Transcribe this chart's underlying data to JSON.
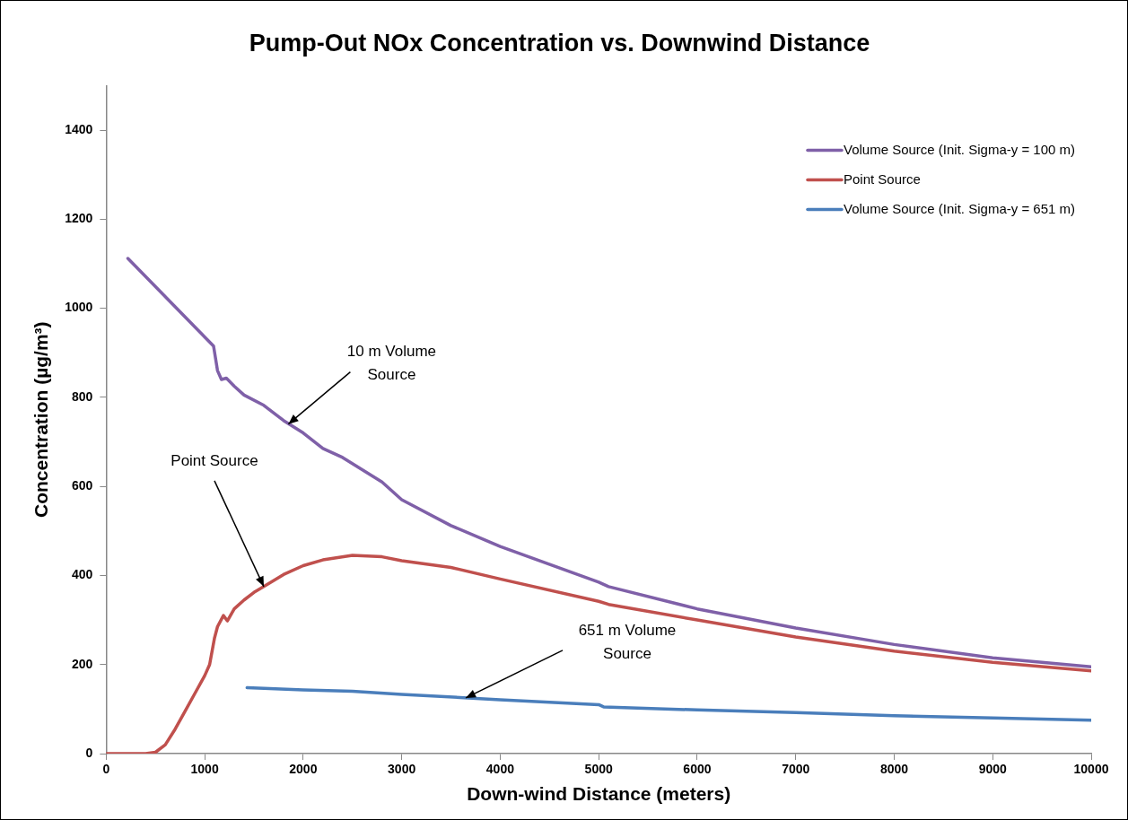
{
  "chart_data": {
    "type": "line",
    "title": "Pump-Out NOx Concentration vs. Downwind Distance",
    "xlabel": "Down-wind Distance (meters)",
    "ylabel": "Concentration (µg/m³)",
    "xlim": [
      0,
      10000
    ],
    "xticks": [
      0,
      1000,
      2000,
      3000,
      4000,
      5000,
      6000,
      7000,
      8000,
      9000,
      10000
    ],
    "ylim": [
      0,
      1500
    ],
    "yticks": [
      0,
      200,
      400,
      600,
      800,
      1000,
      1200,
      1400
    ],
    "grid": false,
    "legend": "top right",
    "marker": "none",
    "line_style": "solid",
    "series": [
      {
        "name": "Volume Source (Init. Sigma-y = 100 m)",
        "color": "#7f60a8",
        "x": [
          220,
          1090,
          1130,
          1170,
          1220,
          1300,
          1400,
          1600,
          1800,
          2000,
          2200,
          2400,
          2800,
          3000,
          3500,
          4000,
          5000,
          5100,
          6000,
          7000,
          8000,
          9000,
          10000
        ],
        "values": [
          1112,
          915,
          860,
          840,
          843,
          825,
          805,
          782,
          748,
          720,
          685,
          665,
          610,
          570,
          512,
          465,
          385,
          375,
          325,
          282,
          245,
          215,
          195
        ]
      },
      {
        "name": "Point Source",
        "color": "#c0504d",
        "x": [
          0,
          400,
          500,
          600,
          700,
          800,
          900,
          1000,
          1050,
          1100,
          1130,
          1190,
          1230,
          1300,
          1400,
          1500,
          1600,
          1800,
          2000,
          2200,
          2500,
          2800,
          3000,
          3500,
          4000,
          5000,
          5100,
          6000,
          7000,
          8000,
          9000,
          10000
        ],
        "values": [
          0,
          0,
          3,
          20,
          55,
          95,
          135,
          175,
          200,
          260,
          285,
          310,
          298,
          325,
          345,
          362,
          375,
          402,
          422,
          435,
          445,
          442,
          433,
          418,
          392,
          342,
          335,
          300,
          262,
          230,
          205,
          186
        ]
      },
      {
        "name": "Volume Source (Init. Sigma-y = 651 m)",
        "color": "#4a7ebb",
        "x": [
          1430,
          2000,
          2500,
          3000,
          4000,
          5000,
          5050,
          6000,
          7000,
          8000,
          9000,
          10000
        ],
        "values": [
          148,
          143,
          140,
          133,
          121,
          110,
          105,
          98,
          92,
          85,
          80,
          75
        ]
      }
    ],
    "annotations": [
      {
        "text": "10 m Volume Source",
        "x": 1850,
        "y": 740
      },
      {
        "text": "Point Source",
        "x": 1600,
        "y": 375
      },
      {
        "text": "651 m Volume Source",
        "x": 3650,
        "y": 125
      }
    ]
  }
}
